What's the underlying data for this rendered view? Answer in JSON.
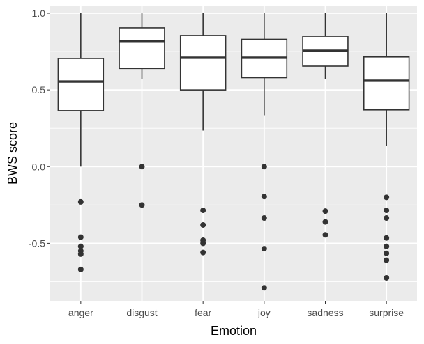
{
  "chart_data": {
    "type": "boxplot",
    "xlabel": "Emotion",
    "ylabel": "BWS score",
    "ylim": [
      -0.875,
      1.05
    ],
    "yticks": [
      {
        "value": 1.0,
        "label": "1.0"
      },
      {
        "value": 0.5,
        "label": "0.5"
      },
      {
        "value": 0.0,
        "label": "0.0"
      },
      {
        "value": -0.5,
        "label": "-0.5"
      }
    ],
    "y_minor_gridlines": [
      0.75,
      0.25,
      -0.25,
      -0.75
    ],
    "grid": true,
    "colors": {
      "panel_background": "#ebebeb",
      "gridline": "#ffffff",
      "box_fill": "#ffffff",
      "box_stroke": "#333333",
      "outlier": "#333333",
      "tick_mark": "#333333"
    },
    "categories": [
      "anger",
      "disgust",
      "fear",
      "joy",
      "sadness",
      "surprise"
    ],
    "boxes": [
      {
        "category": "anger",
        "whisker_low": 0.0,
        "q1": 0.365,
        "median": 0.555,
        "q3": 0.705,
        "whisker_high": 1.0,
        "outliers": [
          -0.23,
          -0.46,
          -0.52,
          -0.55,
          -0.57,
          -0.67
        ]
      },
      {
        "category": "disgust",
        "whisker_low": 0.57,
        "q1": 0.64,
        "median": 0.815,
        "q3": 0.905,
        "whisker_high": 1.0,
        "outliers": [
          0.0,
          -0.25
        ]
      },
      {
        "category": "fear",
        "whisker_low": 0.235,
        "q1": 0.5,
        "median": 0.71,
        "q3": 0.855,
        "whisker_high": 1.0,
        "outliers": [
          -0.285,
          -0.38,
          -0.48,
          -0.5,
          -0.56
        ]
      },
      {
        "category": "joy",
        "whisker_low": 0.335,
        "q1": 0.58,
        "median": 0.71,
        "q3": 0.83,
        "whisker_high": 1.0,
        "outliers": [
          0.0,
          -0.195,
          -0.335,
          -0.535,
          -0.79
        ]
      },
      {
        "category": "sadness",
        "whisker_low": 0.57,
        "q1": 0.655,
        "median": 0.755,
        "q3": 0.85,
        "whisker_high": 1.0,
        "outliers": [
          -0.29,
          -0.36,
          -0.445
        ]
      },
      {
        "category": "surprise",
        "whisker_low": 0.135,
        "q1": 0.37,
        "median": 0.56,
        "q3": 0.715,
        "whisker_high": 1.0,
        "outliers": [
          -0.2,
          -0.285,
          -0.335,
          -0.465,
          -0.52,
          -0.565,
          -0.61,
          -0.725
        ]
      }
    ]
  }
}
